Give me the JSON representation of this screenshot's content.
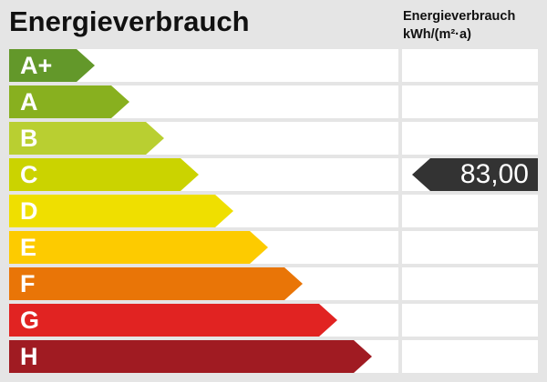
{
  "title": "Energieverbrauch",
  "unit_header": {
    "line1": "Energieverbrauch",
    "line2": "kWh/(m²·a)"
  },
  "classes": [
    {
      "label": "A+",
      "color": "#63982a"
    },
    {
      "label": "A",
      "color": "#88b01f"
    },
    {
      "label": "B",
      "color": "#b9cf31"
    },
    {
      "label": "C",
      "color": "#cbd300"
    },
    {
      "label": "D",
      "color": "#efdf00"
    },
    {
      "label": "E",
      "color": "#fdcb00"
    },
    {
      "label": "F",
      "color": "#e97507"
    },
    {
      "label": "G",
      "color": "#e12322"
    },
    {
      "label": "H",
      "color": "#a01b22"
    }
  ],
  "indicator": {
    "class": "C",
    "value": "83,00",
    "color": "#333333"
  }
}
